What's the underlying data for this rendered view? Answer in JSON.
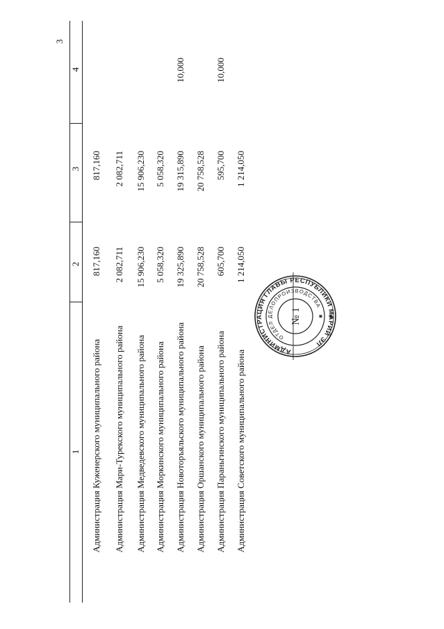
{
  "page_number": "3",
  "table": {
    "headers": [
      "1",
      "2",
      "3",
      "4"
    ],
    "rows": [
      {
        "name": "Администрация Куженерского муниципального района",
        "col2": "817,160",
        "col3": "817,160",
        "col4": ""
      },
      {
        "name": "Администрация Мари-Турекского муниципального района",
        "col2": "2 082,711",
        "col3": "2 082,711",
        "col4": ""
      },
      {
        "name": "Администрация Медведевского муниципального района",
        "col2": "15 906,230",
        "col3": "15 906,230",
        "col4": ""
      },
      {
        "name": "Администрация Моркинского муниципального района",
        "col2": "5 058,320",
        "col3": "5 058,320",
        "col4": ""
      },
      {
        "name": "Администрация Новоторъяльского муниципального района",
        "col2": "19 325,890",
        "col3": "19 315,890",
        "col4": "10,000"
      },
      {
        "name": "Администрация Оршанского муниципального района",
        "col2": "20 758,528",
        "col3": "20 758,528",
        "col4": ""
      },
      {
        "name": "Администрация Параньгинского муниципального района",
        "col2": "605,700",
        "col3": "595,700",
        "col4": "10,000"
      },
      {
        "name": "Администрация Советского муниципального района",
        "col2": "1 214,050",
        "col3": "1 214,050",
        "col4": ""
      }
    ]
  },
  "stamp": {
    "outer_text": "АДМИНИСТРАЦИЯ ГЛАВЫ РЕСПУБЛИКИ МАРИЙ ЭЛ",
    "inner_text": "ОТДЕЛ ДЕЛОПРОИЗВОДСТВА",
    "center_text": "№ 1"
  }
}
